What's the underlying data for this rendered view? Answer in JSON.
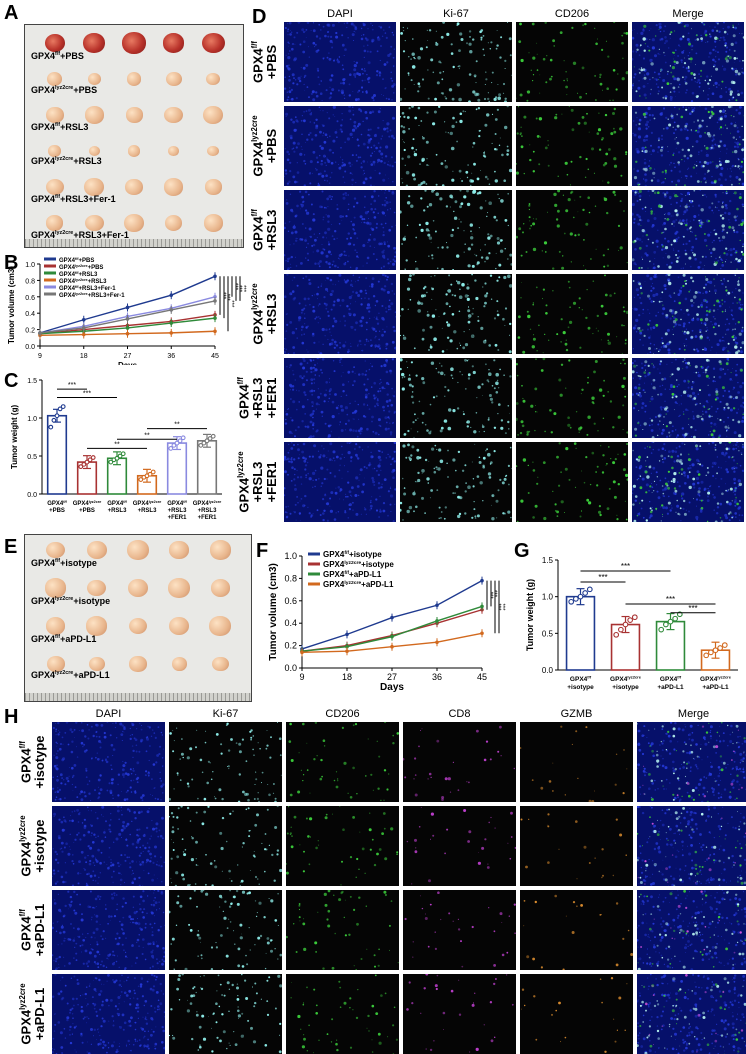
{
  "panel_labels": {
    "A": "A",
    "B": "B",
    "C": "C",
    "D": "D",
    "E": "E",
    "F": "F",
    "G": "G",
    "H": "H"
  },
  "panelA": {
    "rows": [
      "GPX4f/f+PBS",
      "GPX4lyz2cre+PBS",
      "GPX4f/f+RSL3",
      "GPX4lyz2cre+RSL3",
      "GPX4f/f+RSL3+Fer-1",
      "GPX4lyz2cre+RSL3+Fer-1"
    ]
  },
  "panelD": {
    "columns": [
      "DAPI",
      "Ki-67",
      "CD206",
      "Merge"
    ],
    "rows": [
      [
        "GPX4f/f",
        "+PBS"
      ],
      [
        "GPX4lyz2cre",
        "+PBS"
      ],
      [
        "GPX4f/f",
        "+RSL3"
      ],
      [
        "GPX4lyz2cre",
        "+RSL3"
      ],
      [
        "GPX4f/f",
        "+RSL3",
        "+FER1"
      ],
      [
        "GPX4lyz2cre",
        "+RSL3",
        "+FER1"
      ]
    ]
  },
  "panelE": {
    "rows": [
      "GPX4f/f+isotype",
      "GPX4lyz2cre+isotype",
      "GPX4f/f+aPD-L1",
      "GPX4lyz2cre+aPD-L1"
    ]
  },
  "panelH": {
    "columns": [
      "DAPI",
      "Ki-67",
      "CD206",
      "CD8",
      "GZMB",
      "Merge"
    ],
    "rows": [
      [
        "GPX4f/f",
        "+isotype"
      ],
      [
        "GPX4lyz2cre",
        "+isotype"
      ],
      [
        "GPX4f/f",
        "+aPD-L1"
      ],
      [
        "GPX4lyz2cre",
        "+aPD-L1"
      ]
    ]
  },
  "chart_data": [
    {
      "id": "B",
      "type": "line",
      "xlabel": "Days",
      "ylabel": "Tumor volume (cm3)",
      "x": [
        9,
        18,
        27,
        36,
        45
      ],
      "ylim": [
        0,
        1.0
      ],
      "yticks": [
        "0.0",
        "0.2",
        "0.4",
        "0.6",
        "0.8",
        "1.0"
      ],
      "series": [
        {
          "name": "GPX4f/f+PBS",
          "color": "#1f3a8f",
          "values": [
            0.16,
            0.32,
            0.47,
            0.62,
            0.85
          ]
        },
        {
          "name": "GPX4lyz2cre+PBS",
          "color": "#a83232",
          "values": [
            0.15,
            0.2,
            0.25,
            0.3,
            0.38
          ]
        },
        {
          "name": "GPX4f/f+RSL3",
          "color": "#2f8a3a",
          "values": [
            0.15,
            0.18,
            0.22,
            0.28,
            0.34
          ]
        },
        {
          "name": "GPX4lyz2cre+RSL3",
          "color": "#d2691e",
          "values": [
            0.13,
            0.14,
            0.15,
            0.16,
            0.18
          ]
        },
        {
          "name": "GPX4f/f+RSL3+Fer-1",
          "color": "#8a8ae0",
          "values": [
            0.16,
            0.24,
            0.36,
            0.46,
            0.6
          ]
        },
        {
          "name": "GPX4lyz2cre+RSL3+Fer-1",
          "color": "#777777",
          "values": [
            0.16,
            0.22,
            0.33,
            0.44,
            0.55
          ]
        }
      ],
      "sig": [
        "***",
        "***",
        "***",
        "***",
        "***",
        "***"
      ]
    },
    {
      "id": "C",
      "type": "bar",
      "ylabel": "Tumor weight (g)",
      "ylim": [
        0,
        1.5
      ],
      "yticks": [
        "0.0",
        "0.5",
        "1.0",
        "1.5"
      ],
      "categories": [
        "GPX4f/f +PBS",
        "GPX4lyz2cre +PBS",
        "GPX4f/f +RSL3",
        "GPX4lyz2cre +RSL3",
        "GPX4f/f +RSL3 +FER1",
        "GPX4lyz2cre +RSL3 +FER1"
      ],
      "cat_lines": [
        [
          "GPX4f/f",
          "+PBS"
        ],
        [
          "GPX4lyz2cre",
          "+PBS"
        ],
        [
          "GPX4f/f",
          "+RSL3"
        ],
        [
          "GPX4lyz2cre",
          "+RSL3"
        ],
        [
          "GPX4f/f",
          "+RSL3",
          "+FER1"
        ],
        [
          "GPX4lyz2cre",
          "+RSL3",
          "+FER1"
        ]
      ],
      "values": [
        1.03,
        0.42,
        0.47,
        0.24,
        0.67,
        0.7
      ],
      "colors": [
        "#1f3a8f",
        "#a83232",
        "#2f8a3a",
        "#d2691e",
        "#8a8ae0",
        "#777777"
      ],
      "points": [
        [
          0.88,
          0.97,
          1.03,
          1.12,
          1.15
        ],
        [
          0.36,
          0.39,
          0.42,
          0.45,
          0.48
        ],
        [
          0.42,
          0.45,
          0.47,
          0.5,
          0.53
        ],
        [
          0.19,
          0.22,
          0.24,
          0.26,
          0.29
        ],
        [
          0.6,
          0.64,
          0.67,
          0.7,
          0.74
        ],
        [
          0.64,
          0.67,
          0.7,
          0.73,
          0.76
        ]
      ],
      "sig": [
        {
          "a": 0,
          "b": 1,
          "y": 1.38,
          "label": "***"
        },
        {
          "a": 0,
          "b": 2,
          "y": 1.27,
          "label": "***"
        },
        {
          "a": 1,
          "b": 3,
          "y": 0.6,
          "label": "**"
        },
        {
          "a": 2,
          "b": 4,
          "y": 0.72,
          "label": "**"
        },
        {
          "a": 3,
          "b": 5,
          "y": 0.86,
          "label": "**"
        }
      ]
    },
    {
      "id": "F",
      "type": "line",
      "xlabel": "Days",
      "ylabel": "Tumor volume (cm3)",
      "x": [
        9,
        18,
        27,
        36,
        45
      ],
      "ylim": [
        0,
        1.0
      ],
      "yticks": [
        "0.0",
        "0.2",
        "0.4",
        "0.6",
        "0.8",
        "1.0"
      ],
      "series": [
        {
          "name": "GPX4f/f+isotype",
          "color": "#1f3a8f",
          "values": [
            0.17,
            0.3,
            0.45,
            0.56,
            0.78
          ]
        },
        {
          "name": "GPX4lyz2cre+isotype",
          "color": "#a83232",
          "values": [
            0.15,
            0.2,
            0.29,
            0.4,
            0.52
          ]
        },
        {
          "name": "GPX4f/f+aPD-L1",
          "color": "#2f8a3a",
          "values": [
            0.15,
            0.19,
            0.28,
            0.42,
            0.55
          ]
        },
        {
          "name": "GPX4lyz2cre+aPD-L1",
          "color": "#d2691e",
          "values": [
            0.14,
            0.15,
            0.19,
            0.23,
            0.31
          ]
        }
      ],
      "sig": [
        "***",
        "***",
        "***",
        "***"
      ]
    },
    {
      "id": "G",
      "type": "bar",
      "ylabel": "Tumor weight (g)",
      "ylim": [
        0,
        1.5
      ],
      "yticks": [
        "0.0",
        "0.5",
        "1.0",
        "1.5"
      ],
      "categories": [
        "GPX4f/f +isotype",
        "GPX4lyz2cre +isotype",
        "GPX4f/f +aPD-L1",
        "GPX4lyz2cre +aPD-L1"
      ],
      "cat_lines": [
        [
          "GPX4f/f",
          "+isotype"
        ],
        [
          "GPX4lyz2cre",
          "+isotype"
        ],
        [
          "GPX4f/f",
          "+aPD-L1"
        ],
        [
          "GPX4lyz2cre",
          "+aPD-L1"
        ]
      ],
      "values": [
        1.0,
        0.62,
        0.66,
        0.27
      ],
      "colors": [
        "#1f3a8f",
        "#a83232",
        "#2f8a3a",
        "#d2691e"
      ],
      "points": [
        [
          0.93,
          0.97,
          1.0,
          1.05,
          1.1
        ],
        [
          0.48,
          0.55,
          0.62,
          0.68,
          0.72
        ],
        [
          0.55,
          0.62,
          0.66,
          0.7,
          0.76
        ],
        [
          0.2,
          0.24,
          0.27,
          0.3,
          0.34
        ]
      ],
      "sig": [
        {
          "a": 0,
          "b": 2,
          "y": 1.35,
          "label": "***"
        },
        {
          "a": 0,
          "b": 1,
          "y": 1.2,
          "label": "***"
        },
        {
          "a": 1,
          "b": 3,
          "y": 0.9,
          "label": "***"
        },
        {
          "a": 2,
          "b": 3,
          "y": 0.78,
          "label": "***"
        }
      ]
    }
  ]
}
